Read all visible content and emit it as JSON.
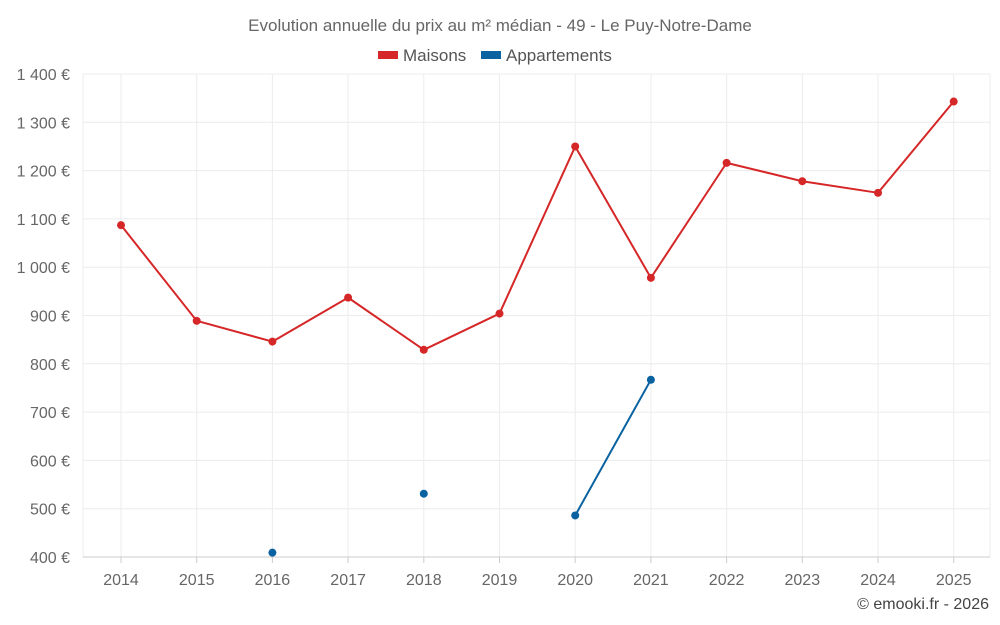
{
  "chart_data": {
    "type": "line",
    "title": "Evolution annuelle du prix au m² médian - 49 - Le Puy-Notre-Dame",
    "categories": [
      "2014",
      "2015",
      "2016",
      "2017",
      "2018",
      "2019",
      "2020",
      "2021",
      "2022",
      "2023",
      "2024",
      "2025"
    ],
    "ylim": [
      400,
      1400
    ],
    "y_ticks": [
      400,
      500,
      600,
      700,
      800,
      900,
      1000,
      1100,
      1200,
      1300,
      1400
    ],
    "y_tick_labels": [
      "400 €",
      "500 €",
      "600 €",
      "700 €",
      "800 €",
      "900 €",
      "1 000 €",
      "1 100 €",
      "1 200 €",
      "1 300 €",
      "1 400 €"
    ],
    "grid": true,
    "legend_position": "top-center",
    "series": [
      {
        "name": "Maisons",
        "color": "#d62728",
        "values": [
          1087,
          889,
          846,
          937,
          829,
          904,
          1250,
          978,
          1216,
          1178,
          1154,
          1343
        ]
      },
      {
        "name": "Appartements",
        "color": "#0a63a0",
        "values": [
          null,
          null,
          409,
          null,
          531,
          null,
          486,
          767,
          null,
          null,
          null,
          null
        ]
      }
    ],
    "credit": "© emooki.fr - 2026"
  }
}
